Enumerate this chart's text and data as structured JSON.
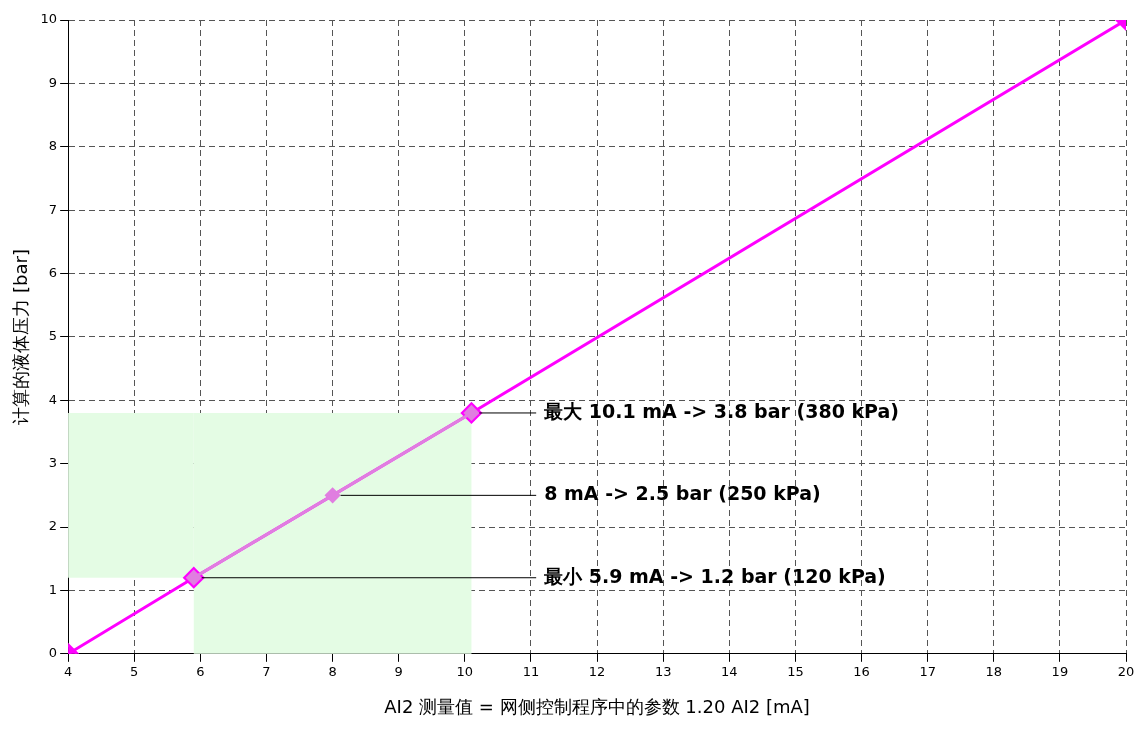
{
  "chart_data": {
    "type": "line",
    "xlabel": "AI2 测量值 = 网侧控制程序中的参数 1.20 AI2 [mA]",
    "ylabel": "计算的液体压力 [bar]",
    "xlim": [
      4,
      20
    ],
    "xticks": [
      4,
      5,
      6,
      7,
      8,
      9,
      10,
      11,
      12,
      13,
      14,
      15,
      16,
      17,
      18,
      19,
      20
    ],
    "ylim": [
      0,
      10
    ],
    "yticks": [
      0,
      1,
      2,
      3,
      4,
      5,
      6,
      7,
      8,
      9,
      10
    ],
    "grid": true,
    "marker": "diamond",
    "line_style": "solid",
    "legend": false,
    "series": [
      {
        "x": [
          4,
          5.9,
          10.1,
          20
        ],
        "values": [
          0,
          1.2,
          3.8,
          10
        ],
        "color": "#ff00ff"
      },
      {
        "x": [
          5.9,
          8,
          10.1
        ],
        "values": [
          1.2,
          2.5,
          3.8
        ],
        "color": "#e07ee0"
      }
    ],
    "bands": [
      {
        "axis": "x",
        "from": 5.9,
        "to": 10.1,
        "color": "#e4fce4"
      },
      {
        "axis": "y",
        "from": 1.2,
        "to": 3.8,
        "color": "#e4fce4"
      }
    ],
    "annotations": [
      {
        "text": "最大 10.1 mA -> 3.8 bar (380 kPa)",
        "x": 10.1,
        "y": 3.8
      },
      {
        "text": "8 mA -> 2.5 bar (250 kPa)",
        "x": 8,
        "y": 2.5
      },
      {
        "text": "最小 5.9 mA -> 1.2 bar (120 kPa)",
        "x": 5.9,
        "y": 1.2
      }
    ]
  }
}
